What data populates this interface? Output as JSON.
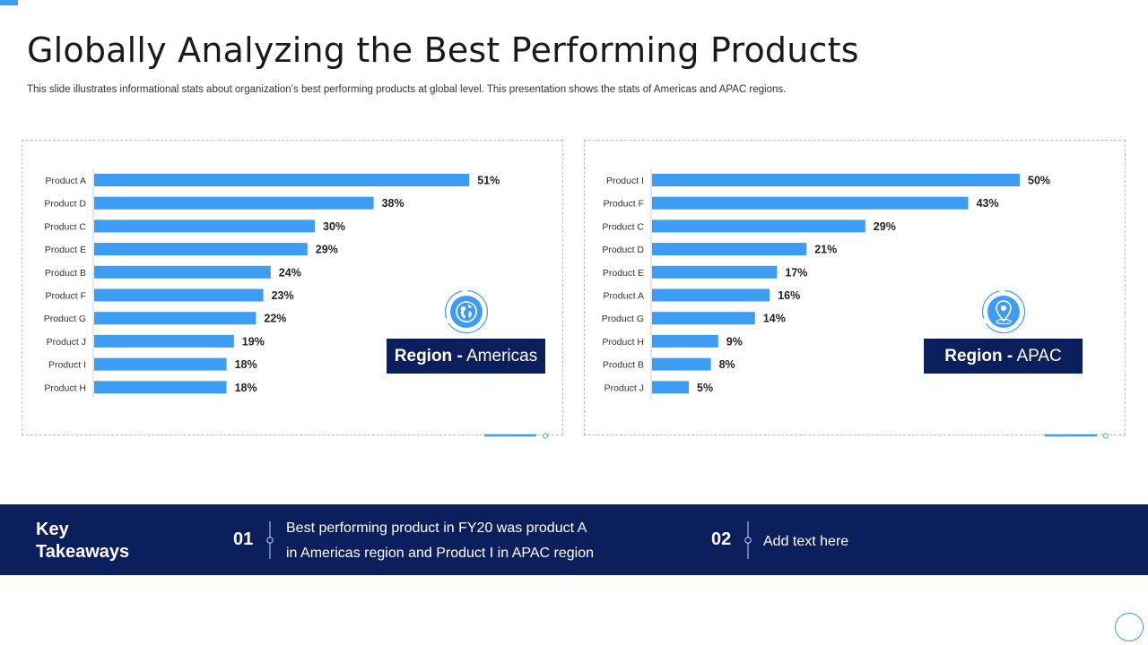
{
  "page": {
    "title": "Globally Analyzing the Best Performing Products",
    "subtitle": "This slide illustrates informational stats about organization’s best performing products at global level. This presentation shows the stats of Americas and APAC  regions."
  },
  "colors": {
    "bar": "#3d9df3",
    "navy": "#0a1f5c",
    "accent": "#3d9df3"
  },
  "regions": [
    {
      "bold": "Region -",
      "name": " Americas",
      "icon": "globe-americas-icon"
    },
    {
      "bold": "Region -",
      "name": " APAC",
      "icon": "location-pin-icon"
    }
  ],
  "chart_data": [
    {
      "type": "bar",
      "orientation": "horizontal",
      "categories": [
        "Product A",
        "Product D",
        "Product C",
        "Product E",
        "Product B",
        "Product F",
        "Product G",
        "Product J",
        "Product I",
        "Product H"
      ],
      "values": [
        51,
        38,
        30,
        29,
        24,
        23,
        22,
        19,
        18,
        18
      ],
      "value_labels": [
        "51%",
        "38%",
        "30%",
        "29%",
        "24%",
        "23%",
        "22%",
        "19%",
        "18%",
        "18%"
      ],
      "xlim": [
        0,
        60
      ],
      "grid": false
    },
    {
      "type": "bar",
      "orientation": "horizontal",
      "categories": [
        "Product I",
        "Product F",
        "Product C",
        "Product D",
        "Product E",
        "Product A",
        "Product G",
        "Product H",
        "Product B",
        "Product J"
      ],
      "values": [
        50,
        43,
        29,
        21,
        17,
        16,
        14,
        9,
        8,
        5
      ],
      "value_labels": [
        "50%",
        "43%",
        "29%",
        "21%",
        "17%",
        "16%",
        "14%",
        "9%",
        "8%",
        "5%"
      ],
      "xlim": [
        0,
        60
      ],
      "grid": false
    }
  ],
  "takeaways": {
    "title": "Key Takeaways",
    "items": [
      {
        "number": "01",
        "line1": "Best performing product in FY20 was product A",
        "line2": "in Americas region and Product I in APAC region"
      },
      {
        "number": "02",
        "line1": "Add text here"
      }
    ]
  }
}
